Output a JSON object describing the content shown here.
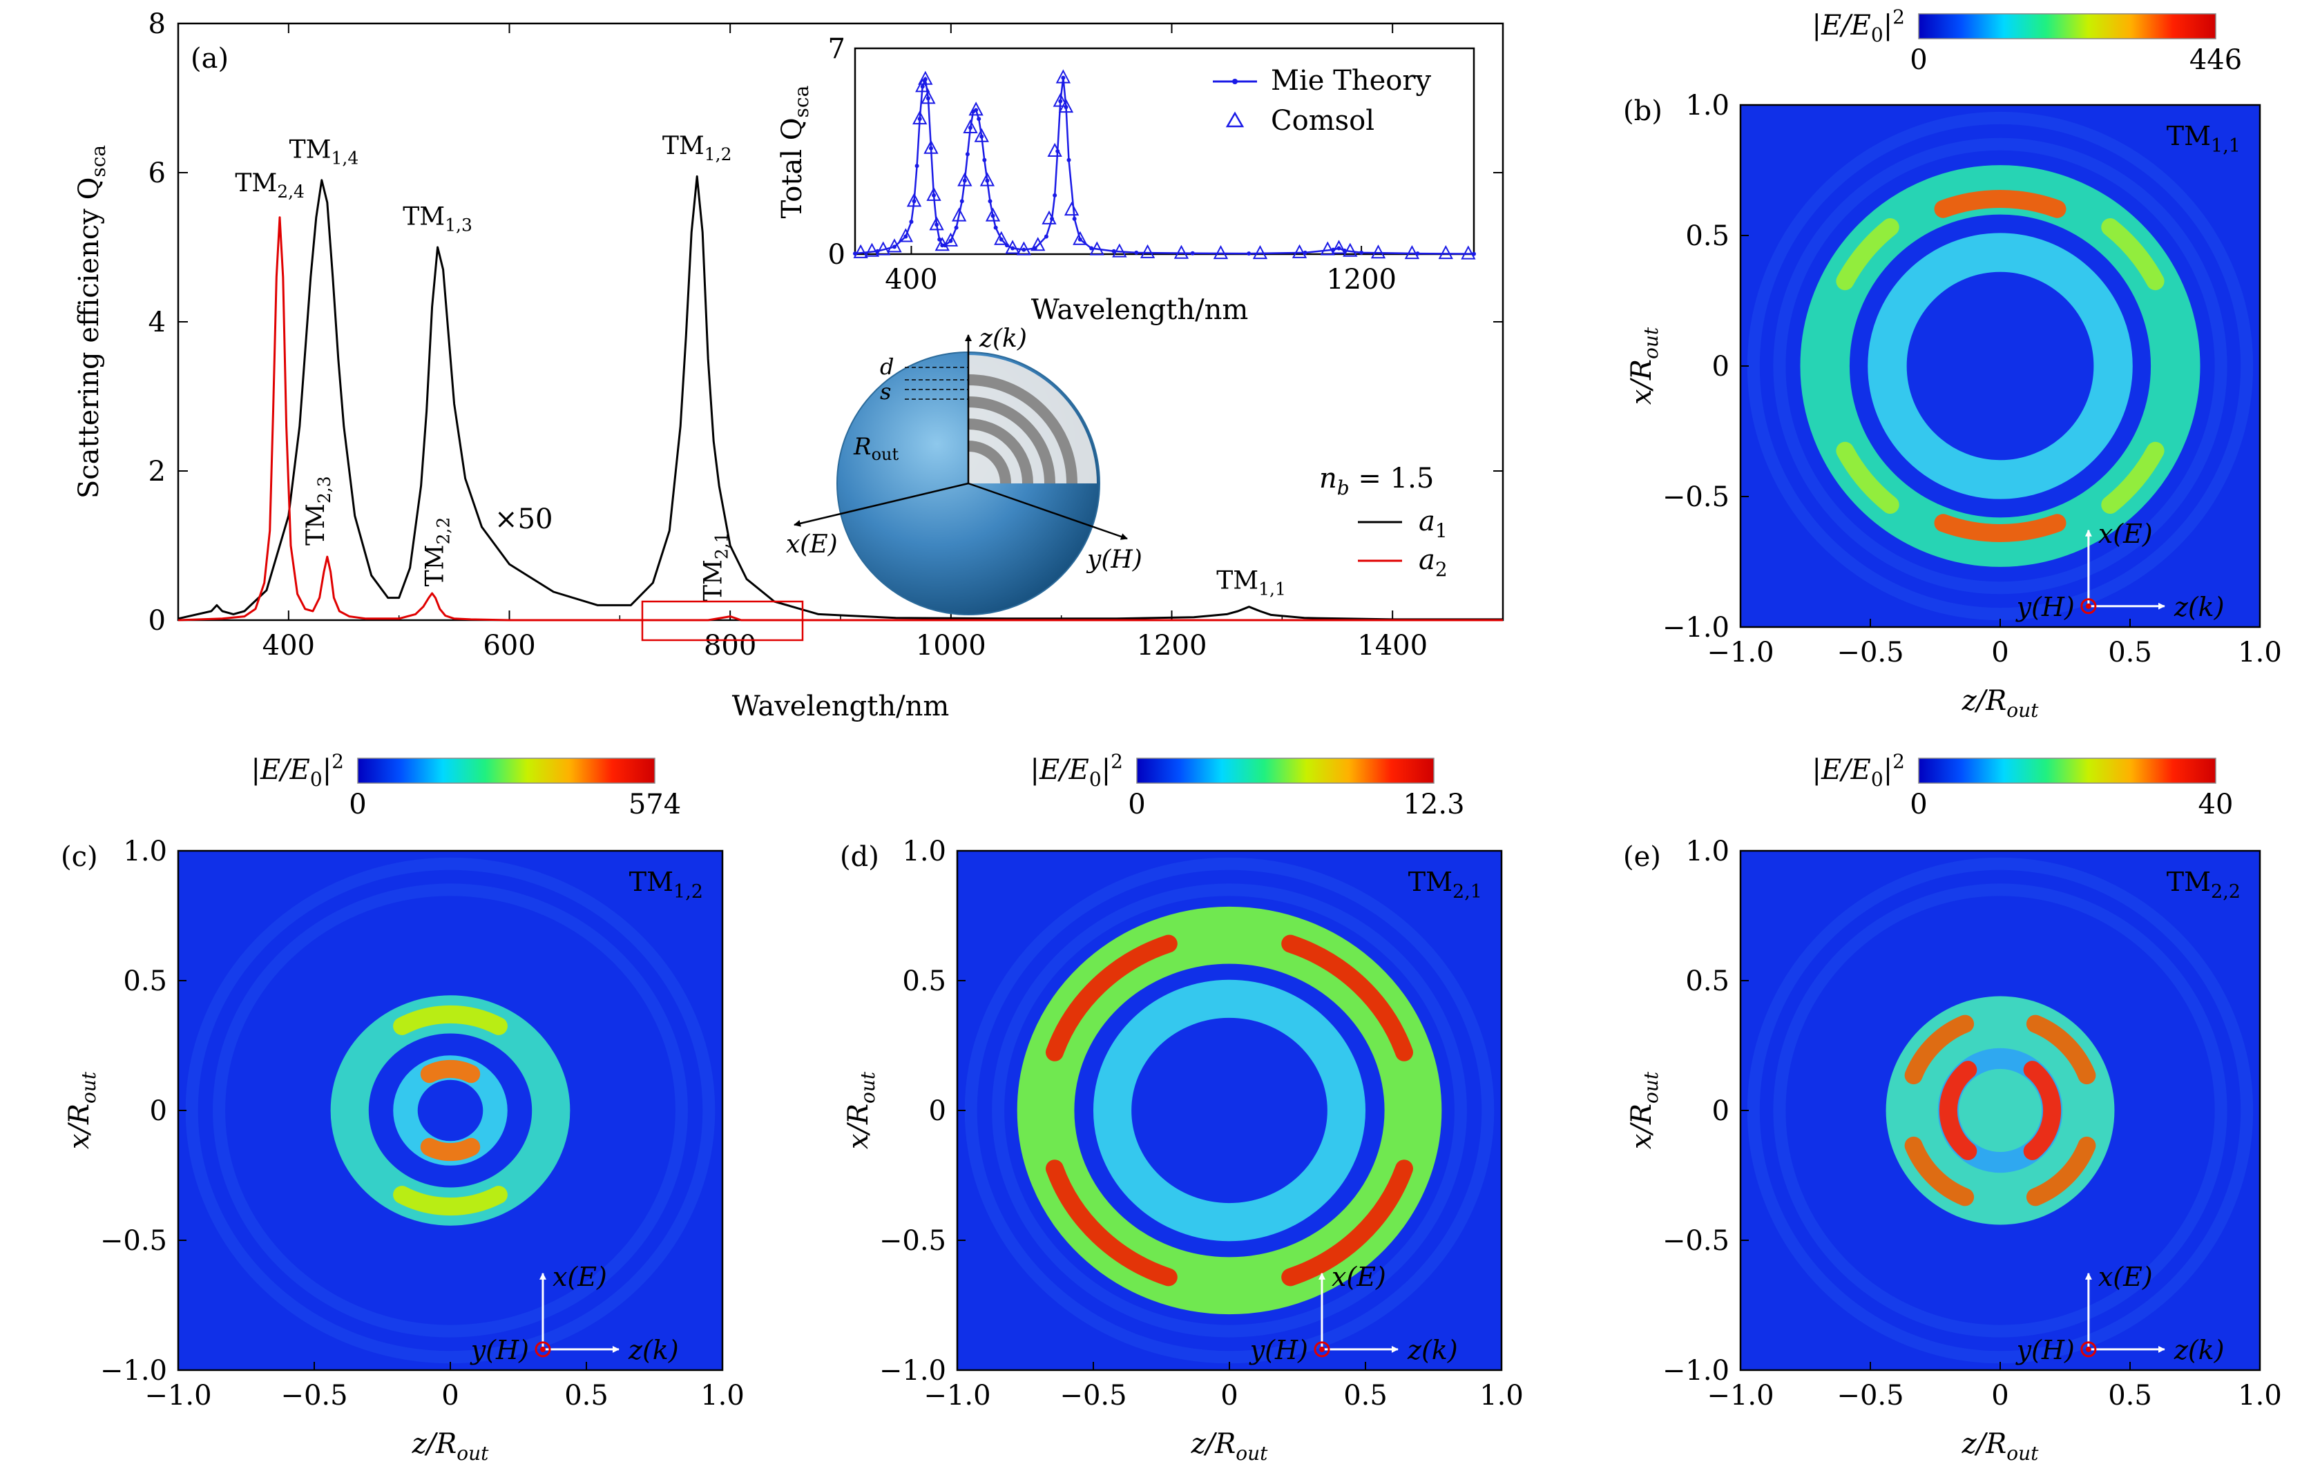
{
  "colors": {
    "a1": "#000000",
    "a2": "#e00000",
    "mie": "#1a1ae6",
    "map_bg": "#1030e8",
    "highlight_box": "#e00000",
    "dipole_marker": "#e00000"
  },
  "colormap": [
    "#0000c0",
    "#0050ff",
    "#00d8ff",
    "#20f080",
    "#c8f000",
    "#ffb000",
    "#ff2000",
    "#d00000"
  ],
  "chart_data": [
    {
      "id": "a",
      "type": "line",
      "panel_label": "(a)",
      "xlabel": "Wavelength/nm",
      "ylabel": "Scattering efficiency Q",
      "ylabel_sub": "sca",
      "xlim": [
        300,
        1500
      ],
      "ylim": [
        0,
        8
      ],
      "xticks": [
        400,
        600,
        800,
        1000,
        1200,
        1400
      ],
      "yticks": [
        0,
        2,
        4,
        6,
        8
      ],
      "legend": {
        "placement": "bottom-right",
        "header": "n",
        "header_sub": "b",
        "header_rest": " = 1.5"
      },
      "series": [
        {
          "name": "a",
          "name_sub": "1",
          "color": "#000000",
          "x": [
            300,
            330,
            335,
            340,
            350,
            360,
            380,
            400,
            410,
            420,
            425,
            430,
            435,
            440,
            445,
            450,
            460,
            475,
            490,
            500,
            510,
            520,
            525,
            530,
            535,
            540,
            545,
            550,
            560,
            575,
            600,
            640,
            680,
            710,
            730,
            745,
            755,
            760,
            765,
            770,
            775,
            780,
            785,
            790,
            800,
            815,
            840,
            880,
            950,
            1050,
            1150,
            1220,
            1250,
            1260,
            1265,
            1270,
            1275,
            1280,
            1290,
            1320,
            1400,
            1500
          ],
          "y": [
            0.02,
            0.12,
            0.2,
            0.12,
            0.08,
            0.12,
            0.4,
            1.4,
            2.6,
            4.6,
            5.4,
            5.9,
            5.6,
            4.6,
            3.5,
            2.6,
            1.4,
            0.6,
            0.3,
            0.3,
            0.7,
            1.8,
            2.8,
            4.2,
            5.0,
            4.7,
            3.8,
            2.9,
            1.9,
            1.25,
            0.75,
            0.38,
            0.2,
            0.2,
            0.5,
            1.2,
            2.6,
            3.8,
            5.2,
            5.95,
            5.2,
            3.5,
            2.4,
            1.8,
            1.0,
            0.55,
            0.25,
            0.08,
            0.03,
            0.02,
            0.02,
            0.04,
            0.08,
            0.12,
            0.15,
            0.18,
            0.15,
            0.12,
            0.07,
            0.03,
            0.01,
            0.01
          ]
        },
        {
          "name": "a",
          "name_sub": "2",
          "color": "#e00000",
          "x": [
            300,
            340,
            360,
            370,
            378,
            383,
            386,
            389,
            392,
            395,
            398,
            402,
            408,
            415,
            422,
            428,
            432,
            435,
            438,
            441,
            446,
            455,
            470,
            500,
            515,
            522,
            527,
            530,
            533,
            537,
            542,
            550,
            565,
            600,
            700,
            780,
            800,
            810,
            830,
            900,
            1100,
            1300,
            1500
          ],
          "y": [
            0.0,
            0.02,
            0.05,
            0.15,
            0.5,
            1.2,
            2.8,
            4.6,
            5.4,
            4.6,
            2.6,
            1.0,
            0.35,
            0.15,
            0.12,
            0.3,
            0.65,
            0.85,
            0.65,
            0.3,
            0.12,
            0.05,
            0.02,
            0.02,
            0.08,
            0.18,
            0.3,
            0.36,
            0.3,
            0.15,
            0.06,
            0.02,
            0.01,
            0.0,
            0.0,
            0.0,
            0.05,
            0.0,
            0.0,
            0.0,
            0.0,
            0.0,
            0.0
          ]
        }
      ],
      "annotations": [
        {
          "main": "TM",
          "sub": "1,4",
          "x": 432,
          "y": 6.2,
          "color": "#000000",
          "rotate": false
        },
        {
          "main": "TM",
          "sub": "2,4",
          "x": 383,
          "y": 5.75,
          "color": "#e00000",
          "rotate": false
        },
        {
          "main": "TM",
          "sub": "1,3",
          "x": 535,
          "y": 5.3,
          "color": "#000000",
          "rotate": false
        },
        {
          "main": "TM",
          "sub": "1,2",
          "x": 770,
          "y": 6.25,
          "color": "#000000",
          "rotate": false
        },
        {
          "main": "TM",
          "sub": "1,1",
          "x": 1272,
          "y": 0.42,
          "color": "#000000",
          "rotate": false
        },
        {
          "main": "TM",
          "sub": "2,3",
          "x": 432,
          "y": 1.0,
          "color": "#e00000",
          "rotate": true
        },
        {
          "main": "TM",
          "sub": "2,2",
          "x": 540,
          "y": 0.45,
          "color": "#e00000",
          "rotate": true
        },
        {
          "main": "TM",
          "sub": "2,1",
          "x": 792,
          "y": 0.25,
          "color": "#e00000",
          "rotate": true
        }
      ],
      "multiplier_label": "×50",
      "multiplier_at": [
        1,
        300
      ]
    },
    {
      "id": "a-inset",
      "type": "line",
      "xlabel": "Wavelength/nm",
      "ylabel": "Total Q",
      "ylabel_sub": "sca",
      "xlim": [
        300,
        1400
      ],
      "ylim": [
        0,
        7
      ],
      "xticks": [
        400,
        1200
      ],
      "yticks": [
        0,
        7
      ],
      "legend": {
        "placement": "top-right"
      },
      "series": [
        {
          "name": "Mie Theory",
          "style": "line-dot",
          "color": "#1a1ae6",
          "x": [
            300,
            340,
            370,
            390,
            400,
            405,
            410,
            415,
            420,
            425,
            430,
            435,
            440,
            445,
            450,
            455,
            460,
            470,
            480,
            490,
            495,
            500,
            505,
            510,
            515,
            520,
            525,
            530,
            535,
            540,
            545,
            550,
            560,
            570,
            580,
            600,
            620,
            640,
            650,
            655,
            660,
            665,
            670,
            675,
            680,
            690,
            700,
            720,
            760,
            800,
            900,
            1000,
            1100,
            1150,
            1160,
            1170,
            1200,
            1300,
            1400
          ],
          "y": [
            0.02,
            0.1,
            0.25,
            0.6,
            1.1,
            1.8,
            3.0,
            4.6,
            5.7,
            5.95,
            5.3,
            3.6,
            2.0,
            1.0,
            0.5,
            0.3,
            0.3,
            0.45,
            0.9,
            1.8,
            2.5,
            3.4,
            4.3,
            4.85,
            4.9,
            4.6,
            4.0,
            3.2,
            2.5,
            1.8,
            1.3,
            0.9,
            0.5,
            0.3,
            0.2,
            0.15,
            0.2,
            0.6,
            1.2,
            2.0,
            3.5,
            5.2,
            6.0,
            5.0,
            3.2,
            1.2,
            0.5,
            0.2,
            0.1,
            0.05,
            0.03,
            0.02,
            0.05,
            0.15,
            0.2,
            0.12,
            0.05,
            0.02,
            0.01
          ]
        },
        {
          "name": "Comsol",
          "style": "triangles",
          "color": "#1a1ae6",
          "x": [
            310,
            330,
            350,
            370,
            390,
            405,
            415,
            420,
            425,
            430,
            435,
            440,
            445,
            455,
            470,
            485,
            495,
            505,
            515,
            525,
            535,
            545,
            560,
            580,
            600,
            625,
            645,
            655,
            665,
            670,
            675,
            685,
            700,
            730,
            770,
            820,
            880,
            950,
            1020,
            1090,
            1140,
            1160,
            1180,
            1230,
            1290,
            1350,
            1390
          ],
          "y": [
            0.05,
            0.1,
            0.15,
            0.25,
            0.6,
            1.8,
            4.6,
            5.7,
            5.95,
            5.3,
            3.6,
            2.0,
            1.0,
            0.3,
            0.45,
            1.3,
            2.5,
            4.3,
            4.9,
            4.0,
            2.5,
            1.3,
            0.5,
            0.2,
            0.15,
            0.3,
            1.2,
            3.5,
            5.2,
            6.0,
            5.0,
            1.5,
            0.5,
            0.15,
            0.08,
            0.05,
            0.03,
            0.02,
            0.02,
            0.05,
            0.15,
            0.2,
            0.1,
            0.04,
            0.02,
            0.02,
            0.01
          ]
        }
      ]
    },
    {
      "id": "b",
      "type": "heatmap",
      "panel_label": "(b)",
      "mode": "TM",
      "mode_sub": "1,1",
      "xlabel": "z/R",
      "xlabel_sub": "out",
      "ylabel": "x/R",
      "ylabel_sub": "out",
      "xlim": [
        -1.0,
        1.0
      ],
      "ylim": [
        -1.0,
        1.0
      ],
      "xticks": [
        "−1.0",
        "−0.5",
        "0",
        "0.5",
        "1.0"
      ],
      "yticks": [
        "1.0",
        "0.5",
        "0",
        "−0.5",
        "−1.0"
      ],
      "colorbar": {
        "label": "|E/E",
        "label_sub": "0",
        "label_end": "|",
        "label_sup": "2",
        "min": "0",
        "max": "446"
      },
      "axes_labels": {
        "x": "x(E)",
        "y": "y(H)",
        "z": "z(k)"
      },
      "rings": [
        {
          "r_in": 0.58,
          "r_out": 0.77,
          "color": "#27d4b4"
        },
        {
          "r_in": 0.36,
          "r_out": 0.51,
          "color": "#35c8ee"
        }
      ],
      "hotspots": [
        {
          "angle_deg": 90,
          "radius": 0.64,
          "color": "#ff5500",
          "spread": 0.35
        },
        {
          "angle_deg": 270,
          "radius": 0.64,
          "color": "#ff5500",
          "spread": 0.35
        },
        {
          "angle_deg": 40,
          "radius": 0.68,
          "color": "#9ef030",
          "spread": 0.2
        },
        {
          "angle_deg": 140,
          "radius": 0.68,
          "color": "#9ef030",
          "spread": 0.2
        },
        {
          "angle_deg": 220,
          "radius": 0.68,
          "color": "#9ef030",
          "spread": 0.2
        },
        {
          "angle_deg": 320,
          "radius": 0.68,
          "color": "#9ef030",
          "spread": 0.2
        }
      ]
    },
    {
      "id": "c",
      "type": "heatmap",
      "panel_label": "(c)",
      "mode": "TM",
      "mode_sub": "1,2",
      "xlabel": "z/R",
      "xlabel_sub": "out",
      "ylabel": "x/R",
      "ylabel_sub": "out",
      "xlim": [
        -1.0,
        1.0
      ],
      "ylim": [
        -1.0,
        1.0
      ],
      "xticks": [
        "−1.0",
        "−0.5",
        "0",
        "0.5",
        "1.0"
      ],
      "yticks": [
        "1.0",
        "0.5",
        "0",
        "−0.5",
        "−1.0"
      ],
      "colorbar": {
        "label": "|E/E",
        "label_sub": "0",
        "label_end": "|",
        "label_sup": "2",
        "min": "0",
        "max": "574"
      },
      "axes_labels": {
        "x": "x(E)",
        "y": "y(H)",
        "z": "z(k)"
      },
      "rings": [
        {
          "r_in": 0.3,
          "r_out": 0.44,
          "color": "#35d0c8"
        },
        {
          "r_in": 0.12,
          "r_out": 0.21,
          "color": "#35c8ee"
        }
      ],
      "hotspots": [
        {
          "angle_deg": 90,
          "radius": 0.37,
          "color": "#c8f000",
          "spread": 0.5
        },
        {
          "angle_deg": 270,
          "radius": 0.37,
          "color": "#c8f000",
          "spread": 0.5
        },
        {
          "angle_deg": 90,
          "radius": 0.16,
          "color": "#ff7000",
          "spread": 0.5
        },
        {
          "angle_deg": 270,
          "radius": 0.16,
          "color": "#ff7000",
          "spread": 0.5
        }
      ]
    },
    {
      "id": "d",
      "type": "heatmap",
      "panel_label": "(d)",
      "mode": "TM",
      "mode_sub": "2,1",
      "xlabel": "z/R",
      "xlabel_sub": "out",
      "ylabel": "x/R",
      "ylabel_sub": "out",
      "xlim": [
        -1.0,
        1.0
      ],
      "ylim": [
        -1.0,
        1.0
      ],
      "xticks": [
        "−1.0",
        "−0.5",
        "0",
        "0.5",
        "1.0"
      ],
      "yticks": [
        "1.0",
        "0.5",
        "0",
        "−0.5",
        "−1.0"
      ],
      "colorbar": {
        "label": "|E/E",
        "label_sub": "0",
        "label_end": "|",
        "label_sup": "2",
        "min": "0",
        "max": "12.3"
      },
      "axes_labels": {
        "x": "x(E)",
        "y": "y(H)",
        "z": "z(k)"
      },
      "rings": [
        {
          "r_in": 0.57,
          "r_out": 0.78,
          "color": "#70e850"
        },
        {
          "r_in": 0.36,
          "r_out": 0.5,
          "color": "#35c8ee"
        }
      ],
      "hotspots": [
        {
          "angle_deg": 45,
          "radius": 0.68,
          "color": "#f02000",
          "spread": 0.45
        },
        {
          "angle_deg": 135,
          "radius": 0.68,
          "color": "#f02000",
          "spread": 0.45
        },
        {
          "angle_deg": 225,
          "radius": 0.68,
          "color": "#f02000",
          "spread": 0.45
        },
        {
          "angle_deg": 315,
          "radius": 0.68,
          "color": "#f02000",
          "spread": 0.45
        }
      ]
    },
    {
      "id": "e",
      "type": "heatmap",
      "panel_label": "(e)",
      "mode": "TM",
      "mode_sub": "2,2",
      "xlabel": "z/R",
      "xlabel_sub": "out",
      "ylabel": "x/R",
      "ylabel_sub": "out",
      "xlim": [
        -1.0,
        1.0
      ],
      "ylim": [
        -1.0,
        1.0
      ],
      "xticks": [
        "−1.0",
        "−0.5",
        "0",
        "0.5",
        "1.0"
      ],
      "yticks": [
        "1.0",
        "0.5",
        "0",
        "−0.5",
        "−1.0"
      ],
      "colorbar": {
        "label": "|E/E",
        "label_sub": "0",
        "label_end": "|",
        "label_sup": "2",
        "min": "0",
        "max": "40"
      },
      "axes_labels": {
        "x": "x(E)",
        "y": "y(H)",
        "z": "z(k)"
      },
      "rings": [
        {
          "r_in": 0.0,
          "r_out": 0.44,
          "color": "#3fd6c0"
        },
        {
          "r_in": 0.16,
          "r_out": 0.24,
          "color": "#2fa8f0"
        }
      ],
      "hotspots": [
        {
          "angle_deg": 45,
          "radius": 0.36,
          "color": "#f06000",
          "spread": 0.4
        },
        {
          "angle_deg": 135,
          "radius": 0.36,
          "color": "#f06000",
          "spread": 0.4
        },
        {
          "angle_deg": 225,
          "radius": 0.36,
          "color": "#f06000",
          "spread": 0.4
        },
        {
          "angle_deg": 315,
          "radius": 0.36,
          "color": "#f06000",
          "spread": 0.4
        },
        {
          "angle_deg": 0,
          "radius": 0.2,
          "color": "#ff2000",
          "spread": 0.9
        },
        {
          "angle_deg": 180,
          "radius": 0.2,
          "color": "#ff2000",
          "spread": 0.9
        }
      ]
    }
  ],
  "schematic": {
    "axis_z": "z(k)",
    "axis_x": "x(E)",
    "axis_y": "y(H)",
    "label_d": "d",
    "label_s": "s",
    "label_r": "R",
    "label_r_sub": "out"
  }
}
